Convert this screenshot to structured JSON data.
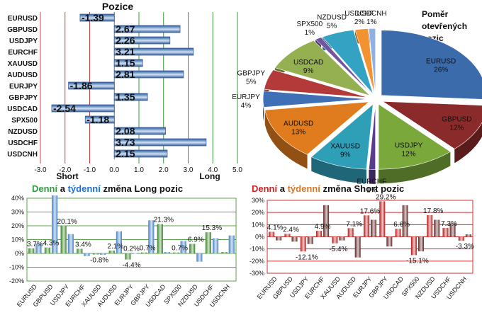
{
  "chart_data": [
    {
      "type": "bar",
      "orientation": "horizontal",
      "title": "Pozice",
      "categories": [
        "EURUSD",
        "GBPUSD",
        "USDJPY",
        "EURCHF",
        "XAUUSD",
        "AUDUSD",
        "EURJPY",
        "GBPJPY",
        "USDCAD",
        "SPX500",
        "NZDUSD",
        "USDCHF",
        "USDCNH"
      ],
      "values": [
        -1.39,
        2.67,
        2.26,
        3.21,
        1.15,
        2.81,
        -1.86,
        1.35,
        -2.54,
        -1.18,
        2.08,
        3.73,
        2.15
      ],
      "value_labels": [
        "-1.39",
        "2.67",
        "2.26",
        "3.21",
        "1.15",
        "2.81",
        "-1.86",
        "1.35",
        "-2.54",
        "-1.18",
        "2.08",
        "3.73",
        "2.15"
      ],
      "xlim": [
        -3.0,
        5.0
      ],
      "x_ticks": [
        "-3.0",
        "-2.0",
        "-1.0",
        "0.0",
        "1.0",
        "2.0",
        "3.0",
        "4.0",
        "5.0"
      ],
      "short_label": "Short",
      "long_label": "Long",
      "bar_color": "#5b86c7"
    },
    {
      "type": "pie",
      "title_lines": [
        "Poměr",
        "otevřených",
        "pozic"
      ],
      "labels": [
        "EURUSD",
        "GBPUSD",
        "USDJPY",
        "EURCHF",
        "XAUUSD",
        "AUDUSD",
        "EURJPY",
        "GBPJPY",
        "USDCAD",
        "SPX500",
        "NZDUSD",
        "USDCHF",
        "USDCNH"
      ],
      "percent_labels": [
        "26%",
        "12%",
        "12%",
        "1%",
        "9%",
        "13%",
        "4%",
        "5%",
        "9%",
        "1%",
        "5%",
        "2%",
        "1%"
      ],
      "values": [
        26,
        12,
        12,
        1,
        9,
        13,
        4,
        5,
        9,
        1,
        5,
        2,
        1
      ],
      "colors": [
        "#3b6bab",
        "#8b2a2a",
        "#7aa83a",
        "#5a3d8a",
        "#2f9fb8",
        "#e07b1e",
        "#3f6fb5",
        "#b33a38",
        "#94b050",
        "#7255a0",
        "#34a3c3",
        "#f29230",
        "#8fb0e0"
      ]
    },
    {
      "type": "bar",
      "title_parts": [
        "Denní",
        " a ",
        "týdenní",
        " změna Long pozic"
      ],
      "title_colors": [
        "#2e9e3e",
        "#111111",
        "#1f6fd0",
        "#111111"
      ],
      "categories": [
        "EURUSD",
        "GBPUSD",
        "USDJPY",
        "EURCHF",
        "XAUUSD",
        "AUDUSD",
        "EURJPY",
        "GBPJPY",
        "USDCAD",
        "SPX500",
        "NZDUSD",
        "USDCHF",
        "USDCNH"
      ],
      "series": [
        {
          "values": [
            3.7,
            4.3,
            20.1,
            3.4,
            -0.8,
            2.1,
            -4.4,
            0.7,
            21.3,
            0.7,
            6.9,
            15.3,
            1.0
          ]
        },
        {
          "values": [
            7.0,
            42.0,
            14.0,
            -2.0,
            -1.0,
            16.0,
            0.2,
            24.0,
            1.0,
            9.0,
            -6.0,
            11.0,
            13.0
          ]
        }
      ],
      "labels": [
        {
          "text": "3.7%",
          "series": 0,
          "i": 0
        },
        {
          "text": "4.3%",
          "series": 0,
          "i": 1
        },
        {
          "text": "20.1%",
          "series": 0,
          "i": 2
        },
        {
          "text": "3.4%",
          "series": 0,
          "i": 3
        },
        {
          "text": "-0.8%",
          "series": 0,
          "i": 4
        },
        {
          "text": "2.1%",
          "series": 0,
          "i": 5
        },
        {
          "text": "0.2%",
          "series": 1,
          "i": 6
        },
        {
          "text": "-4.4%",
          "series": 0,
          "i": 6
        },
        {
          "text": "0.7%",
          "series": 0,
          "i": 7
        },
        {
          "text": "21.3%",
          "series": 0,
          "i": 8
        },
        {
          "text": "0.7%",
          "series": 0,
          "i": 9
        },
        {
          "text": "6.9%",
          "series": 0,
          "i": 10
        },
        {
          "text": "15.3%",
          "series": 0,
          "i": 11
        }
      ],
      "ylim": [
        -20,
        40
      ],
      "y_ticks": [
        "-20%",
        "-10%",
        "0%",
        "10%",
        "20%",
        "30%",
        "40%"
      ],
      "colors": [
        "#3f8f2e",
        "#4f8fd8"
      ]
    },
    {
      "type": "bar",
      "title_parts": [
        "Denní",
        " a ",
        "týdenní",
        " změna Short pozic"
      ],
      "title_colors": [
        "#d42020",
        "#111111",
        "#d4782e",
        "#111111"
      ],
      "categories": [
        "EURUSD",
        "GBPUSD",
        "USDJPY",
        "EURCHF",
        "XAUUSD",
        "AUDUSD",
        "EURJPY",
        "GBPJPY",
        "USDCAD",
        "SPX500",
        "NZDUSD",
        "USDCHF",
        "USDCNH"
      ],
      "series": [
        {
          "values": [
            4.1,
            2.4,
            -12.1,
            4.9,
            -5.4,
            7.1,
            17.6,
            29.2,
            6.6,
            -15.1,
            17.8,
            7.3,
            -3.3
          ]
        },
        {
          "values": [
            -3.0,
            -4.0,
            -6.0,
            26.0,
            -3.0,
            -17.0,
            14.0,
            -8.0,
            26.0,
            -12.0,
            14.0,
            11.0,
            2.0
          ]
        }
      ],
      "labels": [
        {
          "text": "4.1%",
          "series": 0,
          "i": 0
        },
        {
          "text": "2.4%",
          "series": 0,
          "i": 1
        },
        {
          "text": "-12.1%",
          "series": 0,
          "i": 2
        },
        {
          "text": "4.9%",
          "series": 0,
          "i": 3
        },
        {
          "text": "-5.4%",
          "series": 0,
          "i": 4
        },
        {
          "text": "7.1%",
          "series": 0,
          "i": 5
        },
        {
          "text": "17.6%",
          "series": 0,
          "i": 6
        },
        {
          "text": "29.2%",
          "series": 0,
          "i": 7
        },
        {
          "text": "6.6%",
          "series": 0,
          "i": 8
        },
        {
          "text": "-15.1%",
          "series": 0,
          "i": 9
        },
        {
          "text": "17.8%",
          "series": 0,
          "i": 10
        },
        {
          "text": "7.3%",
          "series": 0,
          "i": 11
        },
        {
          "text": "-3.3%",
          "series": 0,
          "i": 12
        }
      ],
      "ylim": [
        -30,
        30
      ],
      "y_ticks": [
        "-30%",
        "-20%",
        "-10%",
        "0%",
        "10%",
        "20%",
        "30%"
      ],
      "colors": [
        "#c81e1e",
        "#6b2a2a"
      ]
    }
  ]
}
